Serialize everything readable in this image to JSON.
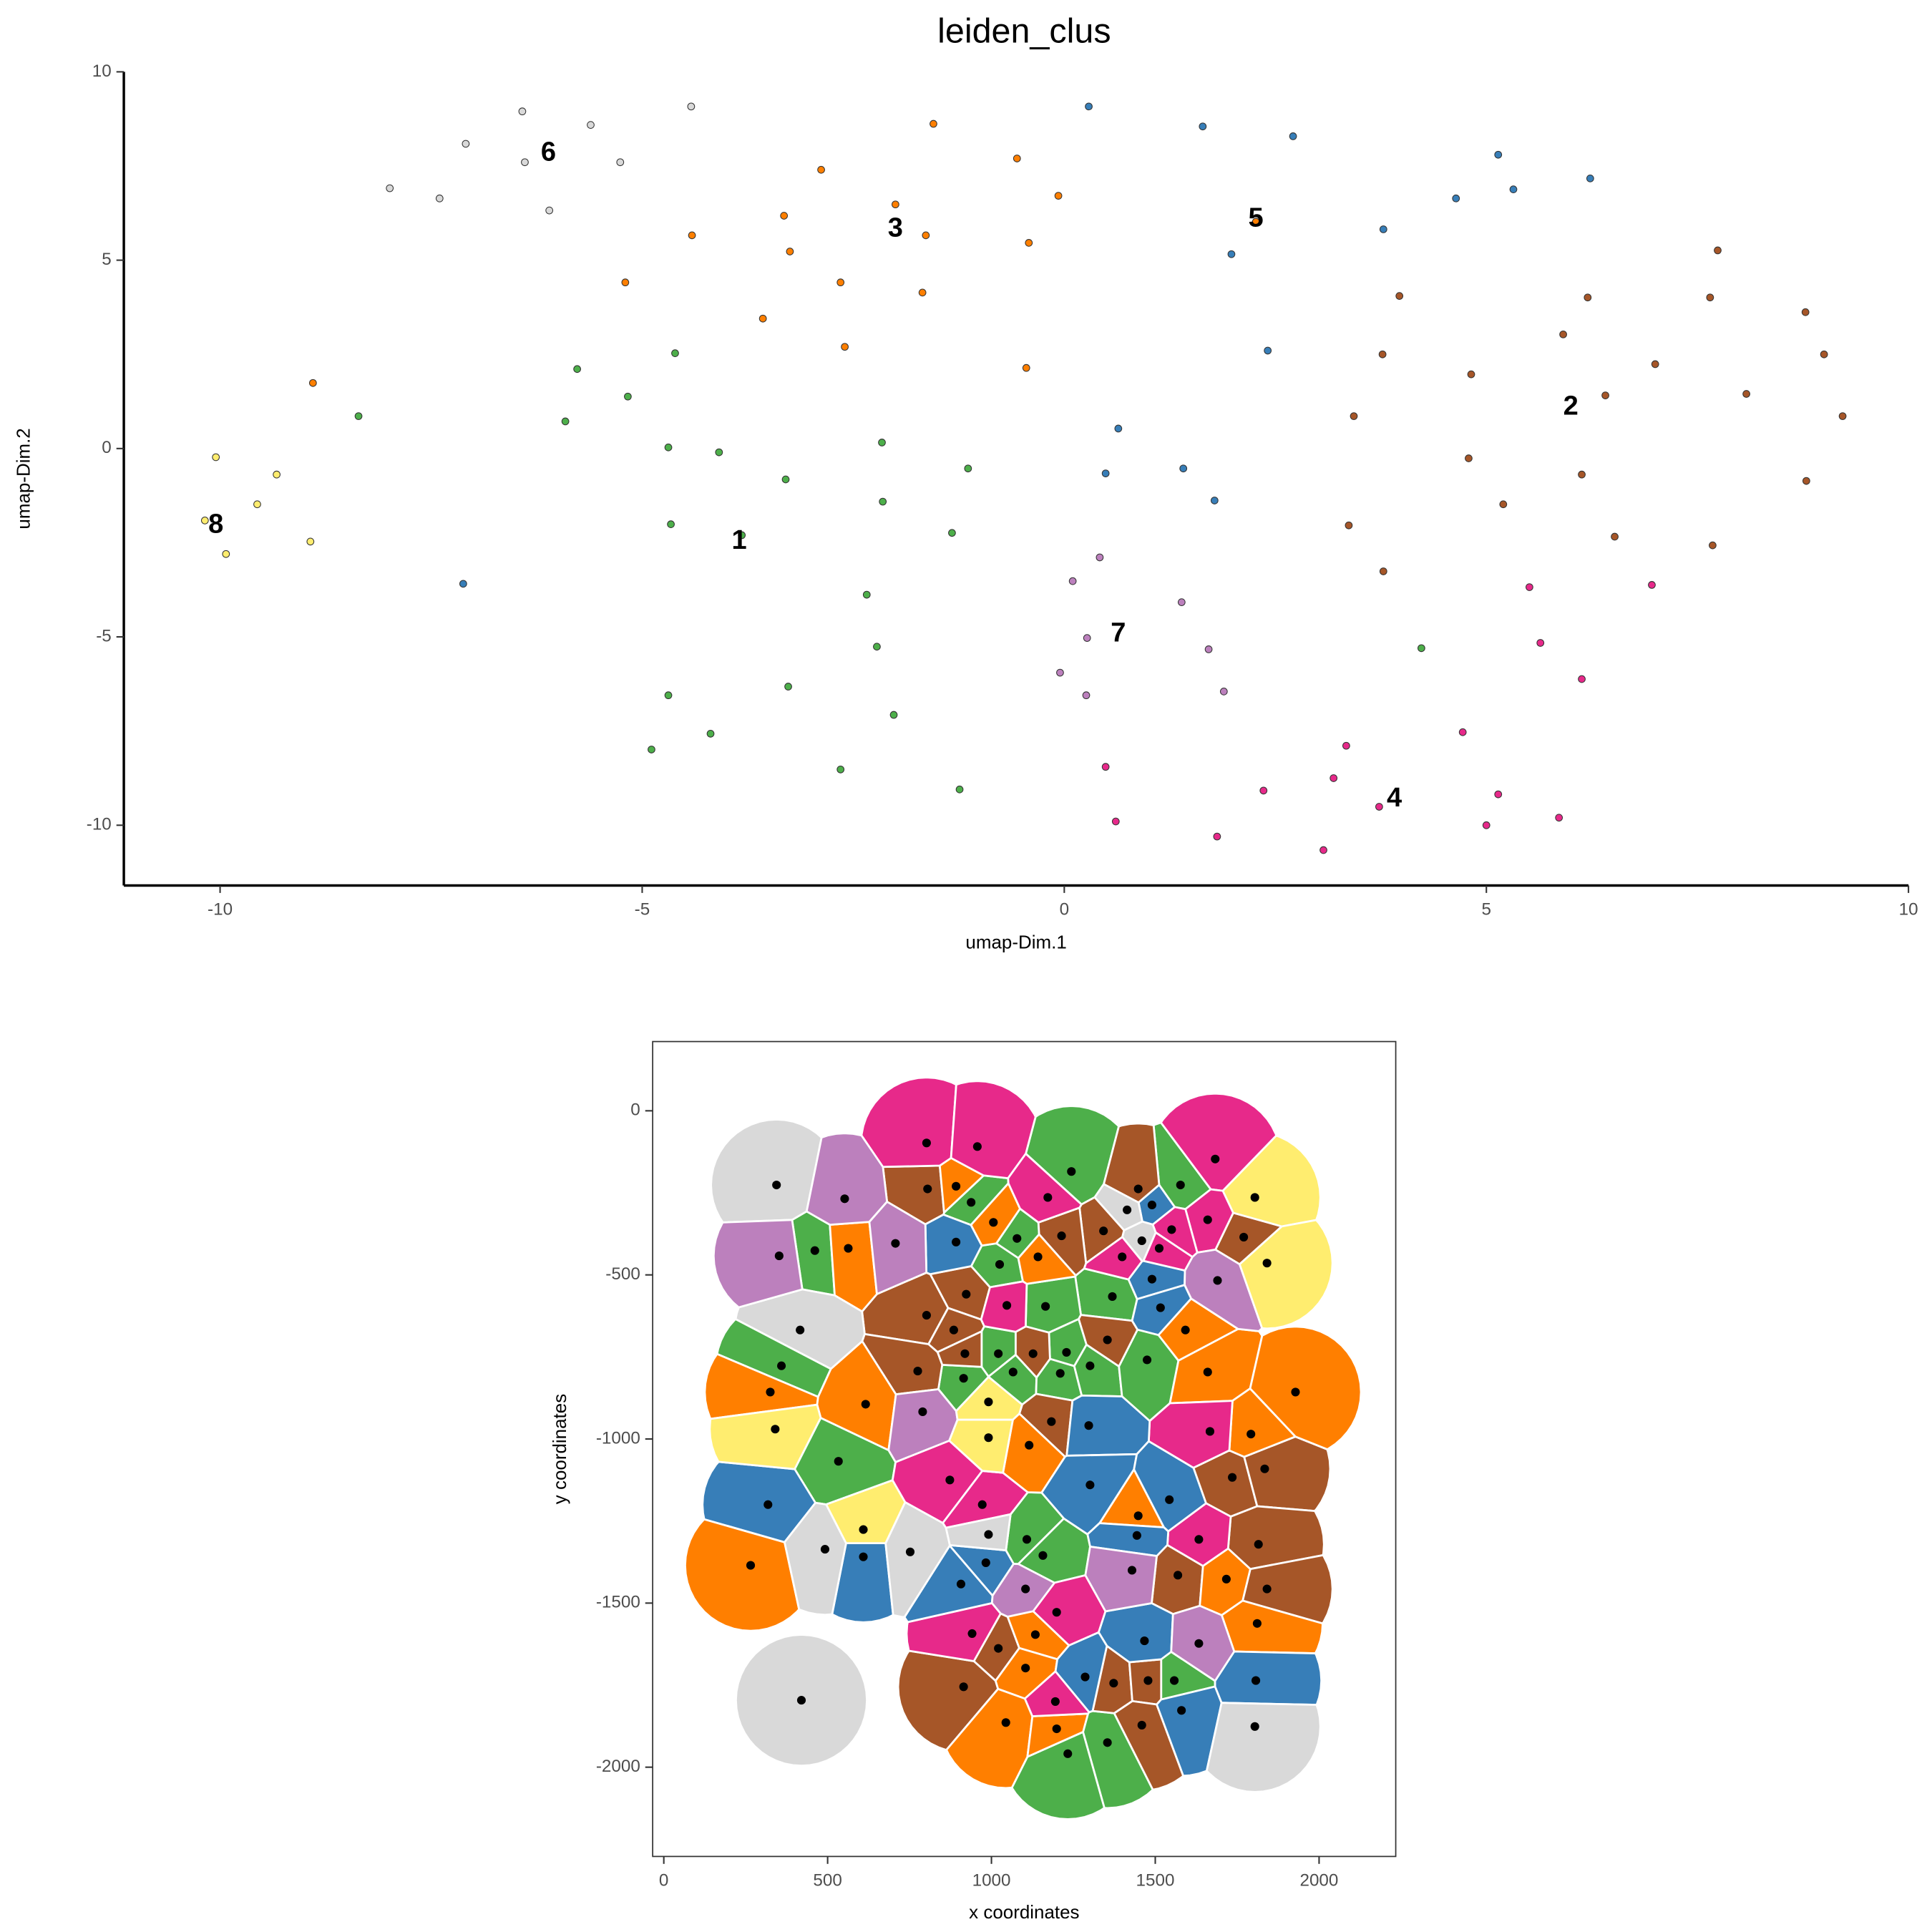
{
  "chart_data": [
    {
      "type": "scatter",
      "title": "leiden_clus",
      "xlabel": "umap-Dim.1",
      "ylabel": "umap-Dim.2",
      "xlim": [
        -11.14,
        10
      ],
      "ylim": [
        -11.6,
        10
      ],
      "xticks": [
        -10,
        -5,
        0,
        5,
        10
      ],
      "yticks": [
        -10,
        -5,
        0,
        5,
        10
      ],
      "series": [
        {
          "name": "1",
          "color": "#4daf4a",
          "x": [
            -5.77,
            -4.61,
            -8.36,
            -5.17,
            -5.91,
            -4.69,
            -4.09,
            -2.16,
            -1.14,
            -3.3,
            -2.15,
            -4.66,
            -3.82,
            -1.33,
            -2.34,
            -2.22,
            -3.27,
            -4.69,
            -2.02,
            -4.19,
            -4.89,
            -2.65,
            -1.24,
            4.23
          ],
          "values": [
            2.11,
            2.53,
            0.86,
            1.38,
            0.72,
            0.03,
            -0.1,
            0.16,
            -0.53,
            -0.82,
            -1.41,
            -2.01,
            -2.3,
            -2.24,
            -3.88,
            -5.26,
            -6.32,
            -6.55,
            -7.07,
            -7.57,
            -7.99,
            -8.52,
            -9.05,
            -5.3
          ]
        },
        {
          "name": "2",
          "color": "#a65628",
          "x": [
            7.74,
            3.97,
            6.2,
            7.65,
            8.78,
            5.91,
            3.77,
            7.0,
            9.0,
            4.82,
            6.41,
            8.08,
            3.43,
            9.22,
            4.79,
            6.13,
            8.79,
            5.2,
            3.37,
            6.52,
            7.68,
            3.78
          ],
          "values": [
            5.26,
            4.05,
            4.01,
            4.01,
            3.62,
            3.03,
            2.5,
            2.24,
            2.5,
            1.97,
            1.41,
            1.45,
            0.86,
            0.86,
            -0.26,
            -0.69,
            -0.86,
            -1.48,
            -2.04,
            -2.34,
            -2.57,
            -3.26
          ]
        },
        {
          "name": "3",
          "color": "#ff7f00",
          "x": [
            -1.55,
            -0.56,
            -2.88,
            -0.07,
            -2.0,
            -3.32,
            -4.41,
            -1.64,
            -3.25,
            -0.42,
            -5.2,
            -2.65,
            -1.68,
            -3.57,
            -2.6,
            -0.45,
            -8.9,
            2.27
          ],
          "values": [
            8.62,
            7.7,
            7.4,
            6.71,
            6.48,
            6.18,
            5.66,
            5.66,
            5.23,
            5.46,
            4.41,
            4.41,
            4.14,
            3.45,
            2.7,
            2.14,
            1.74,
            6.02
          ]
        },
        {
          "name": "4",
          "color": "#e7298a",
          "x": [
            5.51,
            6.96,
            5.64,
            6.13,
            4.72,
            3.34,
            0.49,
            3.19,
            2.36,
            3.73,
            5.14,
            5.86,
            0.61,
            5.0,
            1.81,
            3.07
          ],
          "values": [
            -3.68,
            -3.62,
            -5.16,
            -6.12,
            -7.53,
            -7.89,
            -8.45,
            -8.75,
            -9.08,
            -9.51,
            -9.18,
            -9.8,
            -9.9,
            -10.0,
            -10.3,
            -10.66
          ]
        },
        {
          "name": "5",
          "color": "#377eb8",
          "x": [
            0.29,
            1.64,
            2.71,
            5.14,
            5.32,
            4.64,
            6.23,
            3.78,
            1.98,
            2.41,
            0.64,
            0.49,
            1.41,
            1.78,
            -7.12
          ],
          "values": [
            9.08,
            8.55,
            8.29,
            7.8,
            6.88,
            6.64,
            7.17,
            5.82,
            5.16,
            2.6,
            0.53,
            -0.66,
            -0.53,
            -1.38,
            -3.59
          ]
        },
        {
          "name": "6",
          "color": "#d9d9d9",
          "x": [
            -6.42,
            -4.42,
            -5.61,
            -7.09,
            -6.39,
            -5.26,
            -7.99,
            -7.4,
            -6.1
          ],
          "values": [
            8.95,
            9.08,
            8.59,
            8.09,
            7.6,
            7.6,
            6.91,
            6.64,
            6.32
          ]
        },
        {
          "name": "7",
          "color": "#bc80bd",
          "x": [
            0.42,
            0.1,
            1.39,
            0.27,
            1.71,
            -0.05,
            0.26,
            1.89
          ],
          "values": [
            -2.89,
            -3.52,
            -4.08,
            -5.03,
            -5.33,
            -5.95,
            -6.55,
            -6.45
          ]
        },
        {
          "name": "8",
          "color": "#ffed6f",
          "x": [
            -10.05,
            -9.33,
            -9.56,
            -10.18,
            -8.93,
            -9.93
          ],
          "values": [
            -0.23,
            -0.69,
            -1.48,
            -1.91,
            -2.47,
            -2.8
          ]
        }
      ],
      "annotations": [
        {
          "text": "6",
          "x": -6.11,
          "y": 7.83
        },
        {
          "text": "3",
          "x": -2.0,
          "y": 5.82
        },
        {
          "text": "5",
          "x": 2.27,
          "y": 6.09
        },
        {
          "text": "2",
          "x": 6.0,
          "y": 1.09
        },
        {
          "text": "8",
          "x": -10.05,
          "y": -2.04
        },
        {
          "text": "1",
          "x": -3.85,
          "y": -2.47
        },
        {
          "text": "7",
          "x": 0.64,
          "y": -4.93
        },
        {
          "text": "4",
          "x": 3.91,
          "y": -9.31
        }
      ]
    },
    {
      "type": "voronoi",
      "xlabel": "x coordinates",
      "ylabel": "y coordinates",
      "xlim": [
        -34,
        2234
      ],
      "ylim": [
        -2272,
        211
      ],
      "xticks": [
        0,
        500,
        1000,
        1500,
        2000
      ],
      "yticks": [
        0,
        -500,
        -1000,
        -1500,
        -2000
      ],
      "series": [
        {
          "color": "#4daf4a",
          "x": [
            1244,
            938,
            1577,
            461,
            1078,
            1025,
            1369,
            1165,
            1021,
            1229,
            359,
            915,
            1066,
            1210,
            1301,
            1475,
            533,
            1108,
            1157,
            1558,
            1233,
            1354
          ],
          "values": [
            -185,
            -279,
            -226,
            -426,
            -389,
            -468,
            -566,
            -596,
            -740,
            -736,
            -777,
            -815,
            -796,
            -800,
            -777,
            -759,
            -1068,
            -1306,
            -1355,
            -1736,
            -1959,
            -1925
          ]
        },
        {
          "color": "#a65628",
          "x": [
            1448,
            805,
            1770,
            1342,
            1214,
            923,
            802,
            885,
            919,
            1127,
            1354,
            775,
            1183,
            1735,
            1834,
            1815,
            1569,
            1841,
            1021,
            1373,
            1478,
            915,
            1459
          ],
          "values": [
            -238,
            -238,
            -385,
            -366,
            -381,
            -559,
            -623,
            -668,
            -740,
            -740,
            -698,
            -793,
            -947,
            -1117,
            -1091,
            -1321,
            -1415,
            -1457,
            -1638,
            -1744,
            -1736,
            -1755,
            -1872
          ]
        },
        {
          "color": "#ff7f00",
          "x": [
            892,
            1006,
            563,
            1142,
            1592,
            1660,
            1928,
            325,
            616,
            1792,
            1115,
            1448,
            265,
            1717,
            1134,
            1811,
            1104,
            1044,
            1199
          ],
          "values": [
            -230,
            -340,
            -419,
            -445,
            -668,
            -796,
            -857,
            -857,
            -894,
            -985,
            -1019,
            -1234,
            -1385,
            -1427,
            -1596,
            -1562,
            -1698,
            -1864,
            -1883
          ]
        },
        {
          "color": "#e7298a",
          "x": [
            802,
            957,
            1683,
            1172,
            1660,
            1550,
            1399,
            1512,
            1047,
            1667,
            873,
            972,
            1633,
            1199,
            941,
            1195
          ],
          "values": [
            -98,
            -109,
            -147,
            -264,
            -332,
            -362,
            -445,
            -419,
            -593,
            -977,
            -1125,
            -1200,
            -1306,
            -1528,
            -1593,
            -1800
          ]
        },
        {
          "color": "#377eb8",
          "x": [
            1490,
            892,
            1490,
            1516,
            1297,
            1301,
            318,
            1543,
            1444,
            609,
            983,
            907,
            1467,
            1286,
            1580,
            1807
          ],
          "values": [
            -287,
            -400,
            -513,
            -600,
            -959,
            -1140,
            -1200,
            -1185,
            -1294,
            -1359,
            -1377,
            -1442,
            -1615,
            -1725,
            -1827,
            -1736
          ]
        },
        {
          "color": "#d9d9d9",
          "x": [
            344,
            1414,
            1459,
            416,
            991,
            492,
            752,
            420,
            1804
          ],
          "values": [
            -226,
            -302,
            -396,
            -668,
            -1291,
            -1336,
            -1344,
            -1796,
            -1876
          ]
        },
        {
          "color": "#bc80bd",
          "x": [
            552,
            352,
            707,
            1690,
            790,
            1104,
            1429,
            1633
          ],
          "values": [
            -268,
            -442,
            -404,
            -517,
            -917,
            -1457,
            -1400,
            -1623
          ]
        },
        {
          "color": "#ffed6f",
          "x": [
            1804,
            1841,
            991,
            340,
            991,
            609
          ],
          "values": [
            -264,
            -464,
            -887,
            -970,
            -996,
            -1276
          ]
        }
      ]
    }
  ]
}
